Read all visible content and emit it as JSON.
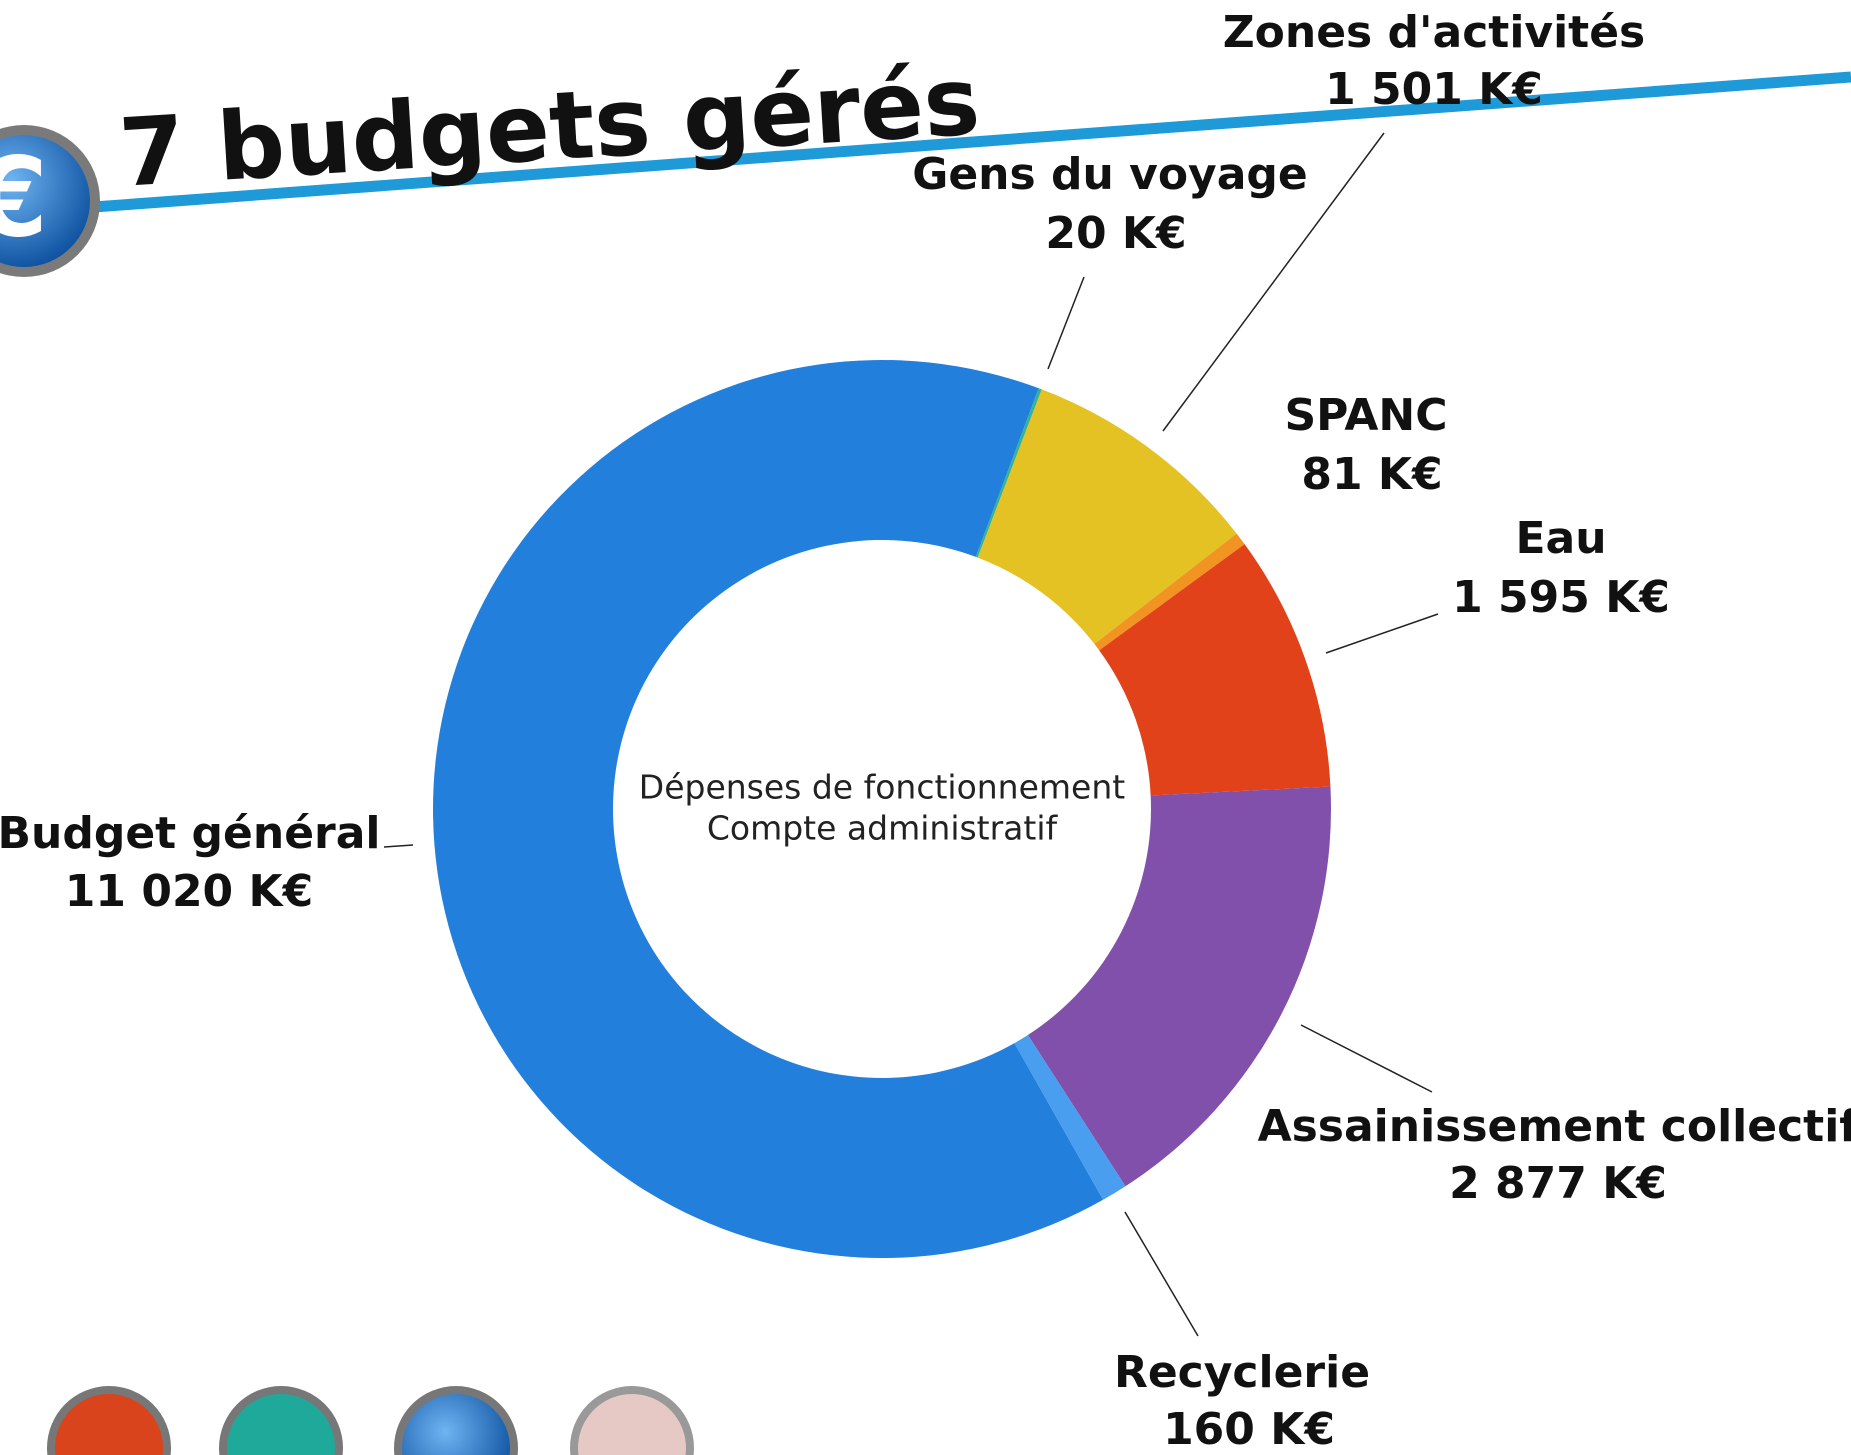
{
  "chart_data": {
    "type": "donut",
    "title": "7 budgets gérés",
    "center_text": [
      "Dépenses de fonctionnement",
      "Compte administratif"
    ],
    "categories": [
      "Budget général",
      "Gens du voyage",
      "Zones d'activités",
      "SPANC",
      "Eau",
      "Assainissement collectif",
      "Recyclerie"
    ],
    "values": [
      11020,
      20,
      1501,
      81,
      1595,
      2877,
      160
    ],
    "value_labels": [
      "11 020 K€",
      "20 K€",
      "1 501 K€",
      "81 K€",
      "1 595 K€",
      "2 877 K€",
      "160 K€"
    ],
    "colors": [
      "#237fdc",
      "#33b39a",
      "#e4c224",
      "#f29422",
      "#e2421a",
      "#8150ab",
      "#4a9ef0"
    ]
  }
}
